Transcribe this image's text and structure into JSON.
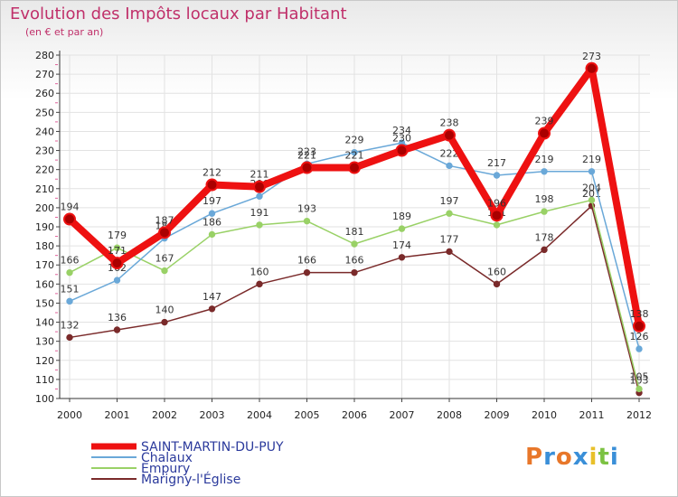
{
  "header": {
    "title": "Evolution des Impôts locaux par Habitant",
    "subtitle": "(en € et par an)"
  },
  "logo": {
    "text": "Proxiti",
    "letters": [
      "P",
      "r",
      "o",
      "x",
      "i",
      "t",
      "i"
    ],
    "colors": [
      "#e8772a",
      "#3a8fd8",
      "#e8772a",
      "#3a8fd8",
      "#e8c02a",
      "#7cc242",
      "#3a8fd8"
    ]
  },
  "chart_data": {
    "type": "line",
    "title": "Evolution des Impôts locaux par Habitant",
    "ylabel": "(en € et par an)",
    "xlabel": "",
    "categories": [
      "2000",
      "2001",
      "2002",
      "2003",
      "2004",
      "2005",
      "2006",
      "2007",
      "2008",
      "2009",
      "2010",
      "2011",
      "2012"
    ],
    "ylim": [
      100,
      280
    ],
    "ytick_step": 10,
    "grid": true,
    "legend_position": "bottom-left",
    "series": [
      {
        "name": "SAINT-MARTIN-DU-PUY",
        "color": "#ee1111",
        "emphasis": true,
        "values": [
          194,
          171,
          187,
          212,
          211,
          221,
          221,
          230,
          238,
          196,
          239,
          273,
          138
        ],
        "labels": [
          "194",
          "171",
          "187",
          "212",
          "211",
          "221",
          "221",
          "230",
          "238",
          "196",
          "239",
          "273",
          "138"
        ]
      },
      {
        "name": "Chalaux",
        "color": "#6aa8d8",
        "values": [
          151,
          162,
          184,
          197,
          206,
          223,
          229,
          234,
          222,
          217,
          219,
          219,
          126
        ],
        "labels": [
          "151",
          "162",
          "184",
          "197",
          "206",
          "223",
          "229",
          "234",
          "222",
          "217",
          "219",
          "219",
          "126"
        ]
      },
      {
        "name": "Empury",
        "color": "#99d166",
        "values": [
          166,
          179,
          167,
          186,
          191,
          193,
          181,
          189,
          197,
          191,
          198,
          204,
          105
        ],
        "labels": [
          "166",
          "179",
          "167",
          "186",
          "191",
          "193",
          "181",
          "189",
          "197",
          "191",
          "198",
          "204",
          "105"
        ]
      },
      {
        "name": "Marigny-l'Église",
        "color": "#7a2a2a",
        "values": [
          132,
          136,
          140,
          147,
          160,
          166,
          166,
          174,
          177,
          160,
          178,
          201,
          103
        ],
        "labels": [
          "132",
          "136",
          "140",
          "147",
          "160",
          "166",
          "166",
          "174",
          "177",
          "160",
          "178",
          "201",
          "103"
        ]
      }
    ]
  }
}
